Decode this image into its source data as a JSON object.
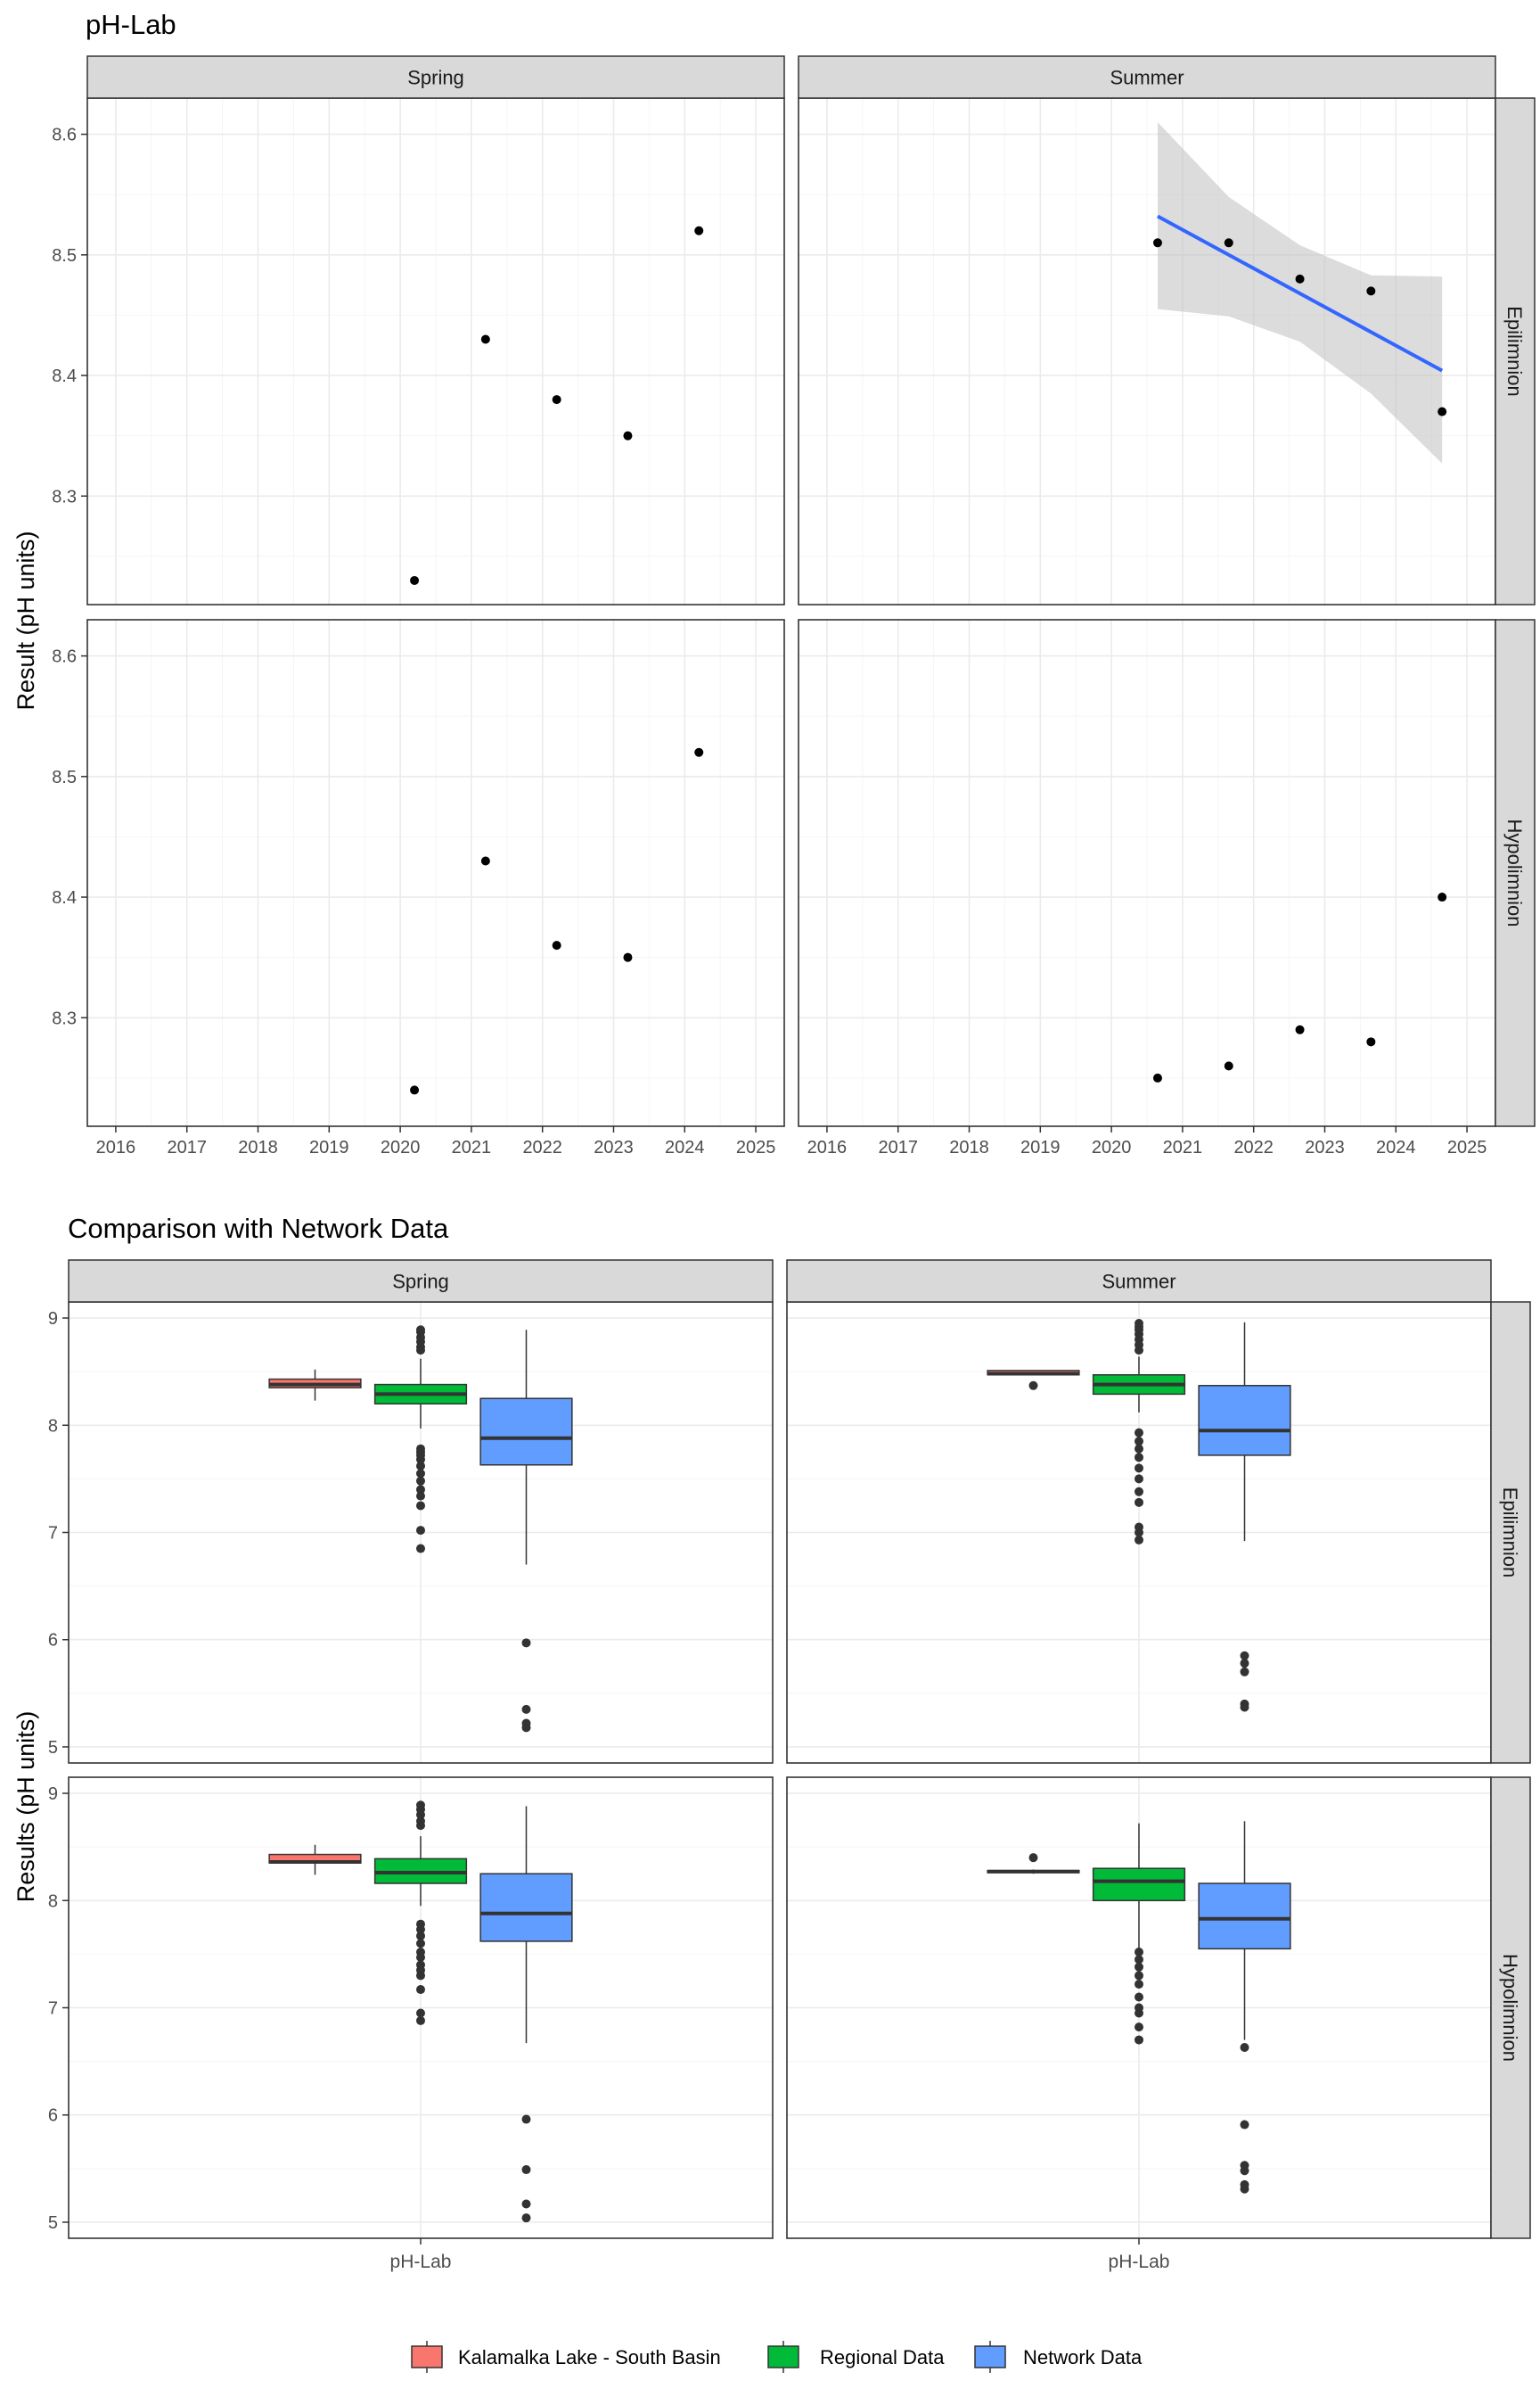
{
  "colors": {
    "strip_fill": "#d9d9d9",
    "panel_border": "#333333",
    "grid_major": "#ebebeb",
    "grid_minor": "#f5f5f5",
    "point": "#000000",
    "trend_line": "#3366ff",
    "ribbon": "#bfbfbf",
    "series": [
      "#f8766d",
      "#00ba38",
      "#619cff"
    ],
    "median": "#333333"
  },
  "chart_data": [
    {
      "type": "scatter",
      "title": "pH-Lab",
      "ylabel": "Result (pH units)",
      "xlabel": "",
      "col_facets": [
        "Spring",
        "Summer"
      ],
      "row_facets": [
        "Epilimnion",
        "Hypolimnion"
      ],
      "xlim": [
        2015.6,
        2025.4
      ],
      "ylim": [
        8.21,
        8.63
      ],
      "x_ticks": [
        "2016",
        "2017",
        "2018",
        "2019",
        "2020",
        "2021",
        "2022",
        "2023",
        "2024",
        "2025"
      ],
      "y_ticks": [
        "8.3",
        "8.4",
        "8.5",
        "8.6"
      ],
      "panels": [
        {
          "row": "Epilimnion",
          "col": "Spring",
          "points": [
            [
              2020.2,
              8.23
            ],
            [
              2021.2,
              8.43
            ],
            [
              2022.2,
              8.38
            ],
            [
              2023.2,
              8.35
            ],
            [
              2024.2,
              8.52
            ]
          ]
        },
        {
          "row": "Epilimnion",
          "col": "Summer",
          "points": [
            [
              2020.65,
              8.51
            ],
            [
              2021.65,
              8.51
            ],
            [
              2022.65,
              8.48
            ],
            [
              2023.65,
              8.47
            ],
            [
              2024.65,
              8.37
            ]
          ],
          "trend": {
            "x": [
              2020.65,
              2024.65
            ],
            "y": [
              8.532,
              8.404
            ],
            "ribbon_x": [
              2020.65,
              2021.65,
              2022.65,
              2023.65,
              2024.65
            ],
            "ribbon_lower": [
              8.455,
              8.449,
              8.428,
              8.385,
              8.327
            ],
            "ribbon_upper": [
              8.61,
              8.548,
              8.508,
              8.483,
              8.482
            ]
          }
        },
        {
          "row": "Hypolimnion",
          "col": "Spring",
          "points": [
            [
              2020.2,
              8.24
            ],
            [
              2021.2,
              8.43
            ],
            [
              2022.2,
              8.36
            ],
            [
              2023.2,
              8.35
            ],
            [
              2024.2,
              8.52
            ]
          ]
        },
        {
          "row": "Hypolimnion",
          "col": "Summer",
          "points": [
            [
              2020.65,
              8.25
            ],
            [
              2021.65,
              8.26
            ],
            [
              2022.65,
              8.29
            ],
            [
              2023.65,
              8.28
            ],
            [
              2024.65,
              8.4
            ]
          ]
        }
      ]
    },
    {
      "type": "box",
      "title": "Comparison with Network Data",
      "ylabel": "Results (pH units)",
      "xlabel": "",
      "col_facets": [
        "Spring",
        "Summer"
      ],
      "row_facets": [
        "Epilimnion",
        "Hypolimnion"
      ],
      "ylim": [
        4.85,
        9.15
      ],
      "y_ticks": [
        "5",
        "6",
        "7",
        "8",
        "9"
      ],
      "x_category": "pH-Lab",
      "series": [
        "Kalamalka Lake - South Basin",
        "Regional Data",
        "Network Data"
      ],
      "panels": [
        {
          "row": "Epilimnion",
          "col": "Spring",
          "boxes": [
            {
              "q1": 8.35,
              "median": 8.38,
              "q3": 8.43,
              "whisker_low": 8.23,
              "whisker_high": 8.52,
              "outliers": []
            },
            {
              "q1": 8.2,
              "median": 8.29,
              "q3": 8.38,
              "whisker_low": 7.97,
              "whisker_high": 8.62,
              "outliers": [
                8.7,
                8.73,
                8.78,
                8.82,
                8.87,
                8.89,
                7.78,
                7.75,
                7.72,
                7.68,
                7.62,
                7.55,
                7.48,
                7.4,
                7.34,
                7.25,
                7.02,
                6.85
              ]
            },
            {
              "q1": 7.63,
              "median": 7.88,
              "q3": 8.25,
              "whisker_low": 6.7,
              "whisker_high": 8.89,
              "outliers": [
                5.97,
                5.35,
                5.22,
                5.18
              ]
            }
          ]
        },
        {
          "row": "Epilimnion",
          "col": "Summer",
          "boxes": [
            {
              "q1": 8.47,
              "median": 8.48,
              "q3": 8.51,
              "whisker_low": 8.47,
              "whisker_high": 8.51,
              "outliers": [
                8.37
              ]
            },
            {
              "q1": 8.29,
              "median": 8.38,
              "q3": 8.47,
              "whisker_low": 8.12,
              "whisker_high": 8.64,
              "outliers": [
                8.7,
                8.75,
                8.8,
                8.85,
                8.89,
                8.92,
                8.95,
                7.93,
                7.85,
                7.78,
                7.7,
                7.6,
                7.5,
                7.38,
                7.28,
                7.05,
                7.0,
                6.93
              ]
            },
            {
              "q1": 7.72,
              "median": 7.95,
              "q3": 8.37,
              "whisker_low": 6.92,
              "whisker_high": 8.96,
              "outliers": [
                5.85,
                5.78,
                5.7,
                5.4,
                5.37
              ]
            }
          ]
        },
        {
          "row": "Hypolimnion",
          "col": "Spring",
          "boxes": [
            {
              "q1": 8.35,
              "median": 8.36,
              "q3": 8.43,
              "whisker_low": 8.24,
              "whisker_high": 8.52,
              "outliers": []
            },
            {
              "q1": 8.16,
              "median": 8.26,
              "q3": 8.39,
              "whisker_low": 7.95,
              "whisker_high": 8.6,
              "outliers": [
                8.7,
                8.74,
                8.8,
                8.85,
                8.89,
                7.78,
                7.73,
                7.67,
                7.6,
                7.52,
                7.47,
                7.4,
                7.35,
                7.3,
                7.17,
                6.95,
                6.88
              ]
            },
            {
              "q1": 7.62,
              "median": 7.88,
              "q3": 8.25,
              "whisker_low": 6.67,
              "whisker_high": 8.88,
              "outliers": [
                5.96,
                5.49,
                5.17,
                5.04
              ]
            }
          ]
        },
        {
          "row": "Hypolimnion",
          "col": "Summer",
          "boxes": [
            {
              "q1": 8.26,
              "median": 8.27,
              "q3": 8.28,
              "whisker_low": 8.25,
              "whisker_high": 8.29,
              "outliers": [
                8.4
              ]
            },
            {
              "q1": 8.0,
              "median": 8.18,
              "q3": 8.3,
              "whisker_low": 7.55,
              "whisker_high": 8.72,
              "outliers": [
                7.52,
                7.45,
                7.38,
                7.3,
                7.22,
                7.1,
                7.0,
                6.95,
                6.82,
                6.7
              ]
            },
            {
              "q1": 7.55,
              "median": 7.83,
              "q3": 8.16,
              "whisker_low": 6.7,
              "whisker_high": 8.74,
              "outliers": [
                6.63,
                5.91,
                5.53,
                5.48,
                5.35,
                5.31
              ]
            }
          ]
        }
      ]
    }
  ]
}
